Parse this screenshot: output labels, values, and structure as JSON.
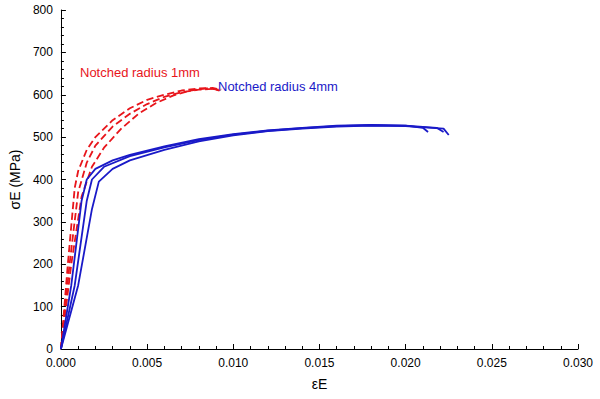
{
  "chart_data": {
    "type": "line",
    "x_label": "εE",
    "y_label": "σE (MPa)",
    "xlim": [
      0,
      0.03
    ],
    "ylim": [
      0,
      800
    ],
    "xticks": [
      {
        "value": 0,
        "label": "0.000"
      },
      {
        "value": 0.005,
        "label": "0.005"
      },
      {
        "value": 0.01,
        "label": "0.010"
      },
      {
        "value": 0.015,
        "label": "0.015"
      },
      {
        "value": 0.02,
        "label": "0.020"
      },
      {
        "value": 0.025,
        "label": "0.025"
      },
      {
        "value": 0.03,
        "label": "0.030"
      }
    ],
    "yticks": [
      0,
      100,
      200,
      300,
      400,
      500,
      600,
      700,
      800
    ],
    "grid": false,
    "series": [
      {
        "name": "Notched radius 1mm",
        "color": "#e8151b",
        "line_style": "dashed",
        "curves": [
          {
            "x": [
              0,
              0.0004,
              0.0008,
              0.001,
              0.0015,
              0.002,
              0.003,
              0.004,
              0.005,
              0.006,
              0.007,
              0.008,
              0.0088,
              0.0093
            ],
            "values": [
              0,
              200,
              380,
              420,
              470,
              500,
              540,
              568,
              588,
              600,
              610,
              615,
              616,
              612
            ]
          },
          {
            "x": [
              0,
              0.0005,
              0.001,
              0.0015,
              0.002,
              0.003,
              0.004,
              0.005,
              0.006,
              0.007,
              0.008,
              0.0088,
              0.0092
            ],
            "values": [
              0,
              200,
              370,
              440,
              480,
              525,
              555,
              578,
              595,
              606,
              612,
              614,
              610
            ]
          },
          {
            "x": [
              0,
              0.0006,
              0.0012,
              0.0018,
              0.0025,
              0.0035,
              0.0045,
              0.0055,
              0.0065,
              0.0075,
              0.0085,
              0.0092
            ],
            "values": [
              0,
              200,
              360,
              430,
              475,
              520,
              555,
              580,
              598,
              610,
              615,
              612
            ]
          }
        ]
      },
      {
        "name": "Notched radius 4mm",
        "color": "#1a1ac8",
        "line_style": "solid",
        "curves": [
          {
            "x": [
              0,
              0.0006,
              0.0012,
              0.0015,
              0.002,
              0.003,
              0.004,
              0.006,
              0.008,
              0.01,
              0.012,
              0.014,
              0.016,
              0.018,
              0.02,
              0.021,
              0.0213
            ],
            "values": [
              0,
              150,
              350,
              400,
              425,
              445,
              458,
              478,
              495,
              507,
              516,
              522,
              527,
              529,
              527,
              522,
              512
            ]
          },
          {
            "x": [
              0,
              0.0008,
              0.0015,
              0.0018,
              0.0025,
              0.004,
              0.006,
              0.008,
              0.01,
              0.012,
              0.014,
              0.016,
              0.018,
              0.02,
              0.0218,
              0.0222
            ],
            "values": [
              0,
              150,
              350,
              400,
              430,
              455,
              476,
              493,
              506,
              515,
              521,
              526,
              528,
              527,
              522,
              512
            ]
          },
          {
            "x": [
              0,
              0.001,
              0.0018,
              0.0022,
              0.003,
              0.004,
              0.006,
              0.008,
              0.01,
              0.012,
              0.014,
              0.016,
              0.018,
              0.02,
              0.0222,
              0.0225
            ],
            "values": [
              0,
              150,
              330,
              395,
              425,
              445,
              470,
              490,
              504,
              514,
              520,
              525,
              527,
              526,
              520,
              505
            ]
          }
        ]
      }
    ]
  }
}
